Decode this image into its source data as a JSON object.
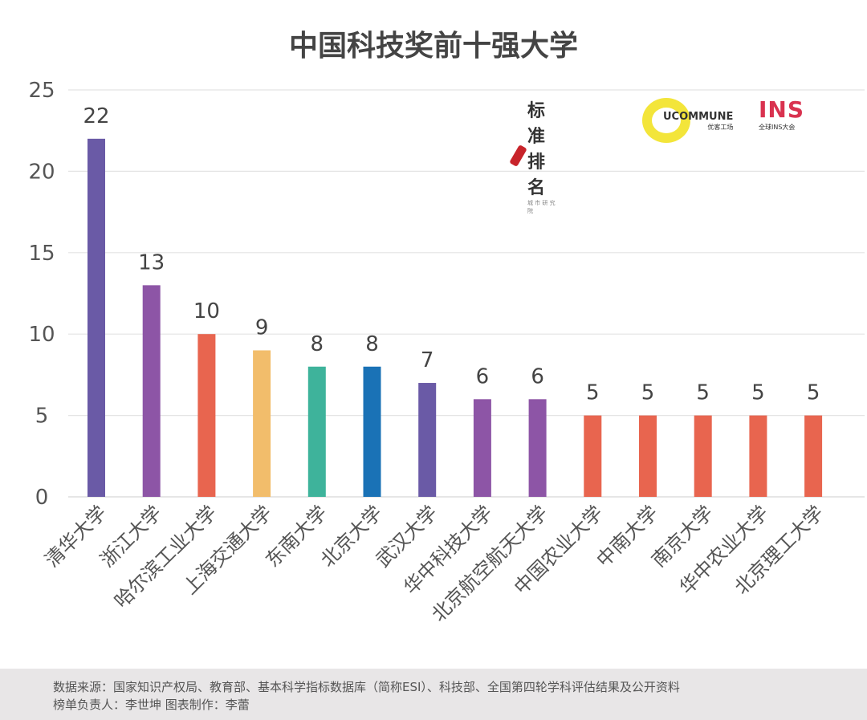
{
  "chart_data": {
    "type": "bar",
    "title": "中国科技奖前十强大学",
    "categories": [
      "清华大学",
      "浙江大学",
      "哈尔滨工业大学",
      "上海交通大学",
      "东南大学",
      "北京大学",
      "武汉大学",
      "华中科技大学",
      "北京航空航天大学",
      "中国农业大学",
      "中南大学",
      "南京大学",
      "华中农业大学",
      "北京理工大学"
    ],
    "values": [
      22,
      13,
      10,
      9,
      8,
      8,
      7,
      6,
      6,
      5,
      5,
      5,
      5,
      5
    ],
    "colors": [
      "#6a5aa6",
      "#8d55a6",
      "#e8654f",
      "#f2bd6b",
      "#3eb39b",
      "#1a72b6",
      "#6a5aa6",
      "#8d55a6",
      "#8d55a6",
      "#e8654f",
      "#e8654f",
      "#e8654f",
      "#e8654f",
      "#e8654f"
    ],
    "ylim": [
      0,
      25
    ],
    "yticks": [
      0,
      5,
      10,
      15,
      20,
      25
    ],
    "grid": true,
    "xlabel": "",
    "ylabel": ""
  },
  "logos": [
    {
      "name": "标准排名",
      "sub": "城 市 研 究 院",
      "color": "#c8242b"
    },
    {
      "name": "UCOMMUNE",
      "sub": "优客工场",
      "color": "#f3e53a"
    },
    {
      "name": "INS",
      "sub": "全球INS大会",
      "color": "#d9324f"
    }
  ],
  "footer": {
    "source": "数据来源：国家知识产权局、教育部、基本科学指标数据库（简称ESI）、科技部、全国第四轮学科评估结果及公开资料",
    "credits": "榜单负责人：李世坤   图表制作：李蕾"
  }
}
